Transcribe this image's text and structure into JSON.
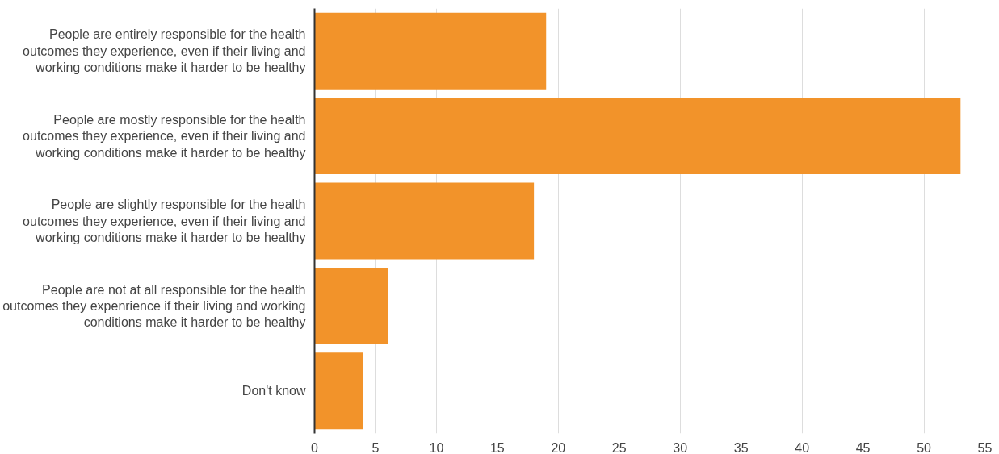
{
  "chart_data": {
    "type": "bar",
    "orientation": "horizontal",
    "categories": [
      "People are entirely responsible for the health\noutcomes they experience, even if their living and\nworking conditions make it harder to be healthy",
      "People are mostly responsible for the health\noutcomes they experience, even if their living and\nworking conditions make it harder to be healthy",
      "People are slightly responsible for the health\noutcomes they experience, even if their living and\nworking conditions make it harder to be healthy",
      "People are not at all responsible for the health\noutcomes they expenrience if their living and working\nconditions make it harder to be healthy",
      "Don't know"
    ],
    "values": [
      19,
      53,
      18,
      6,
      4
    ],
    "color": "#f2932a",
    "xlim": [
      0,
      55
    ],
    "xticks": [
      0,
      5,
      10,
      15,
      20,
      25,
      30,
      35,
      40,
      45,
      50,
      55
    ],
    "grid": "x"
  }
}
